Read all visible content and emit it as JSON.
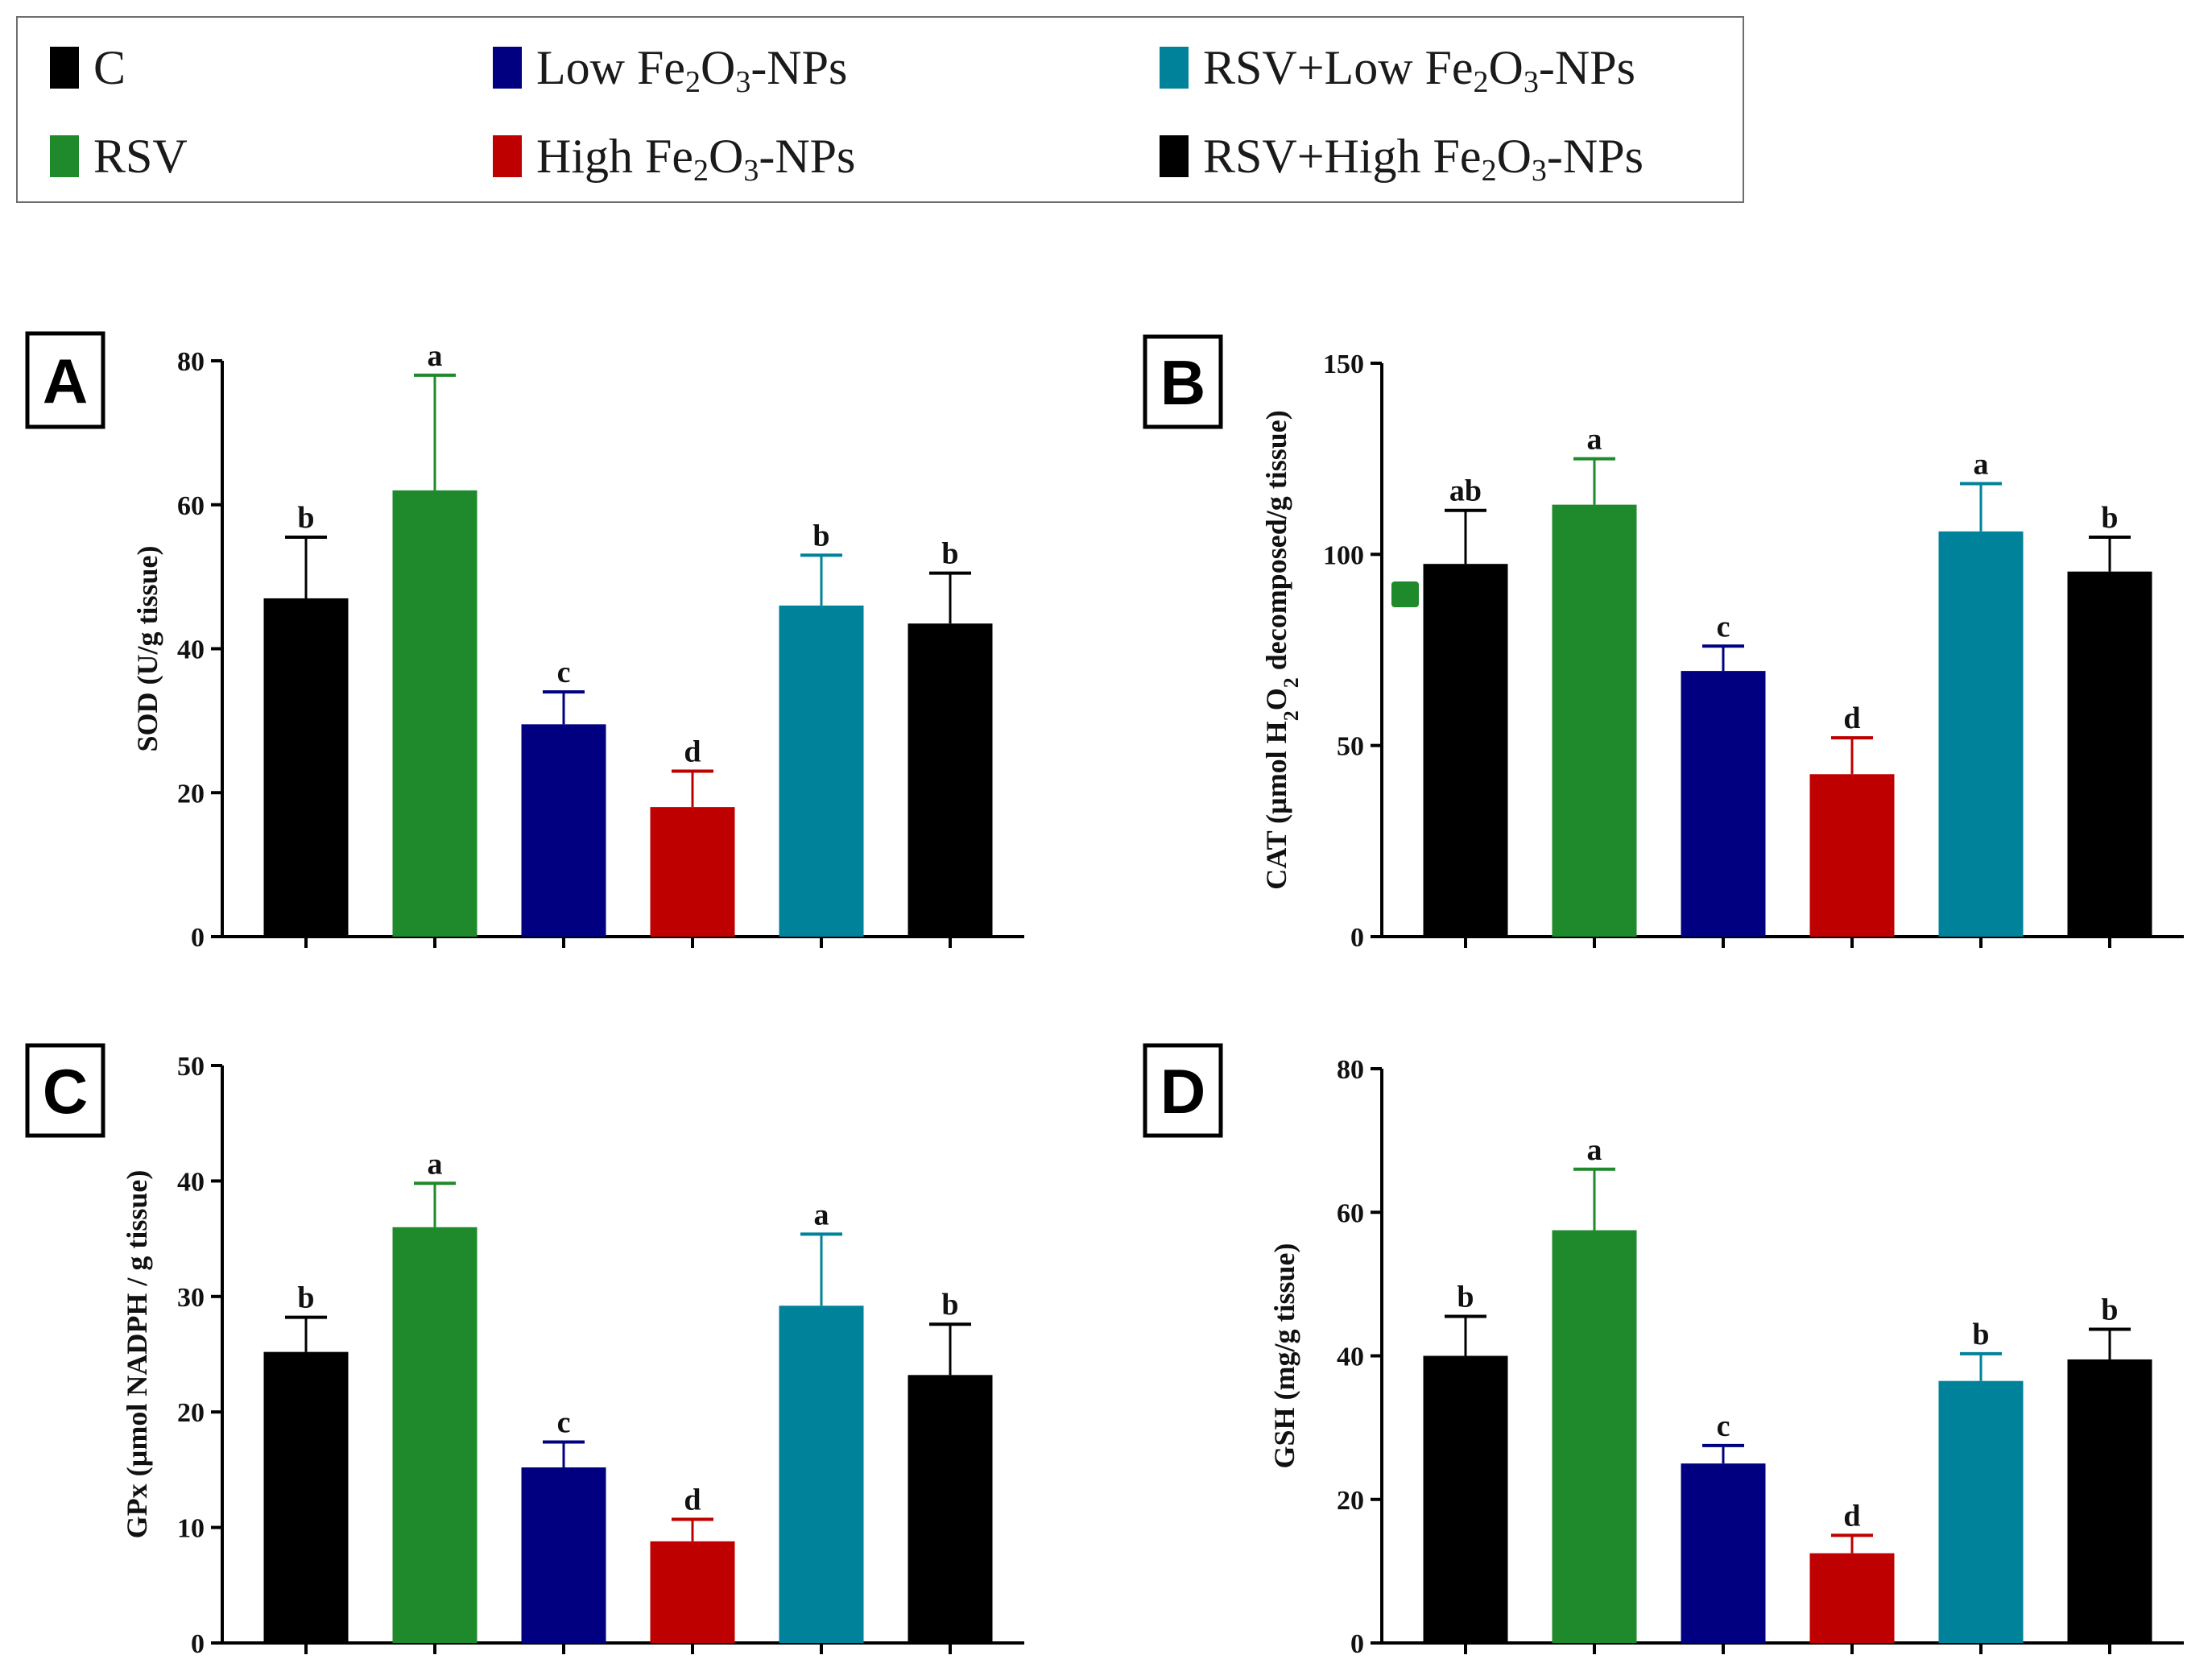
{
  "legend": {
    "entries": [
      {
        "name": "C",
        "color": "#000000"
      },
      {
        "name": "RSV",
        "color": "#1f8a2b"
      },
      {
        "name": "Low Fe2O3-NPs",
        "color": "#000080"
      },
      {
        "name": "High Fe2O3-NPs",
        "color": "#bf0000"
      },
      {
        "name": "RSV+Low Fe2O3-NPs",
        "color": "#00829a"
      },
      {
        "name": "RSV+High Fe2O3-NPs",
        "color": "#000000"
      }
    ]
  },
  "chart_data": [
    {
      "panel": "A",
      "type": "bar",
      "ylabel": "SOD (U/g tissue)",
      "ylim": [
        0,
        80
      ],
      "yticks": [
        0,
        20,
        40,
        60,
        80
      ],
      "categories": [
        "C",
        "RSV",
        "Low Fe2O3-NPs",
        "High Fe2O3-NPs",
        "RSV+Low Fe2O3-NPs",
        "RSV+High Fe2O3-NPs"
      ],
      "values": [
        47,
        62,
        29.5,
        18,
        46,
        43.5
      ],
      "errors": [
        8.5,
        16,
        4.5,
        5,
        7,
        7
      ],
      "significance": [
        "b",
        "a",
        "c",
        "d",
        "b",
        "b"
      ]
    },
    {
      "panel": "B",
      "type": "bar",
      "ylabel": "CAT (µmol H2O2 decomposed/g tissue)",
      "ylim": [
        0,
        150
      ],
      "yticks": [
        0,
        50,
        100,
        150
      ],
      "categories": [
        "C",
        "RSV",
        "Low Fe2O3-NPs",
        "High Fe2O3-NPs",
        "RSV+Low Fe2O3-NPs",
        "RSV+High Fe2O3-NPs"
      ],
      "values": [
        97.5,
        113,
        69.5,
        42.5,
        106,
        95.5
      ],
      "errors": [
        14,
        12,
        6.5,
        9.5,
        12.5,
        9
      ],
      "significance": [
        "ab",
        "a",
        "c",
        "d",
        "a",
        "b"
      ]
    },
    {
      "panel": "C",
      "type": "bar",
      "ylabel": "GPx (µmol  NADPH / g tissue)",
      "ylim": [
        0,
        50
      ],
      "yticks": [
        0,
        10,
        20,
        30,
        40,
        50
      ],
      "categories": [
        "C",
        "RSV",
        "Low Fe2O3-NPs",
        "High Fe2O3-NPs",
        "RSV+Low Fe2O3-NPs",
        "RSV+High Fe2O3-NPs"
      ],
      "values": [
        25.2,
        36,
        15.2,
        8.8,
        29.2,
        23.2
      ],
      "errors": [
        3,
        3.8,
        2.2,
        1.9,
        6.2,
        4.4
      ],
      "significance": [
        "b",
        "a",
        "c",
        "d",
        "a",
        "b"
      ]
    },
    {
      "panel": "D",
      "type": "bar",
      "ylabel": "GSH (mg/g tissue)",
      "ylim": [
        0,
        80
      ],
      "yticks": [
        0,
        20,
        40,
        60,
        80
      ],
      "categories": [
        "C",
        "RSV",
        "Low Fe2O3-NPs",
        "High Fe2O3-NPs",
        "RSV+Low Fe2O3-NPs",
        "RSV+High Fe2O3-NPs"
      ],
      "values": [
        40,
        57.5,
        25,
        12.5,
        36.5,
        39.5
      ],
      "errors": [
        5.5,
        8.5,
        2.5,
        2.5,
        3.8,
        4.2
      ],
      "significance": [
        "b",
        "a",
        "c",
        "d",
        "b",
        "b"
      ]
    }
  ]
}
